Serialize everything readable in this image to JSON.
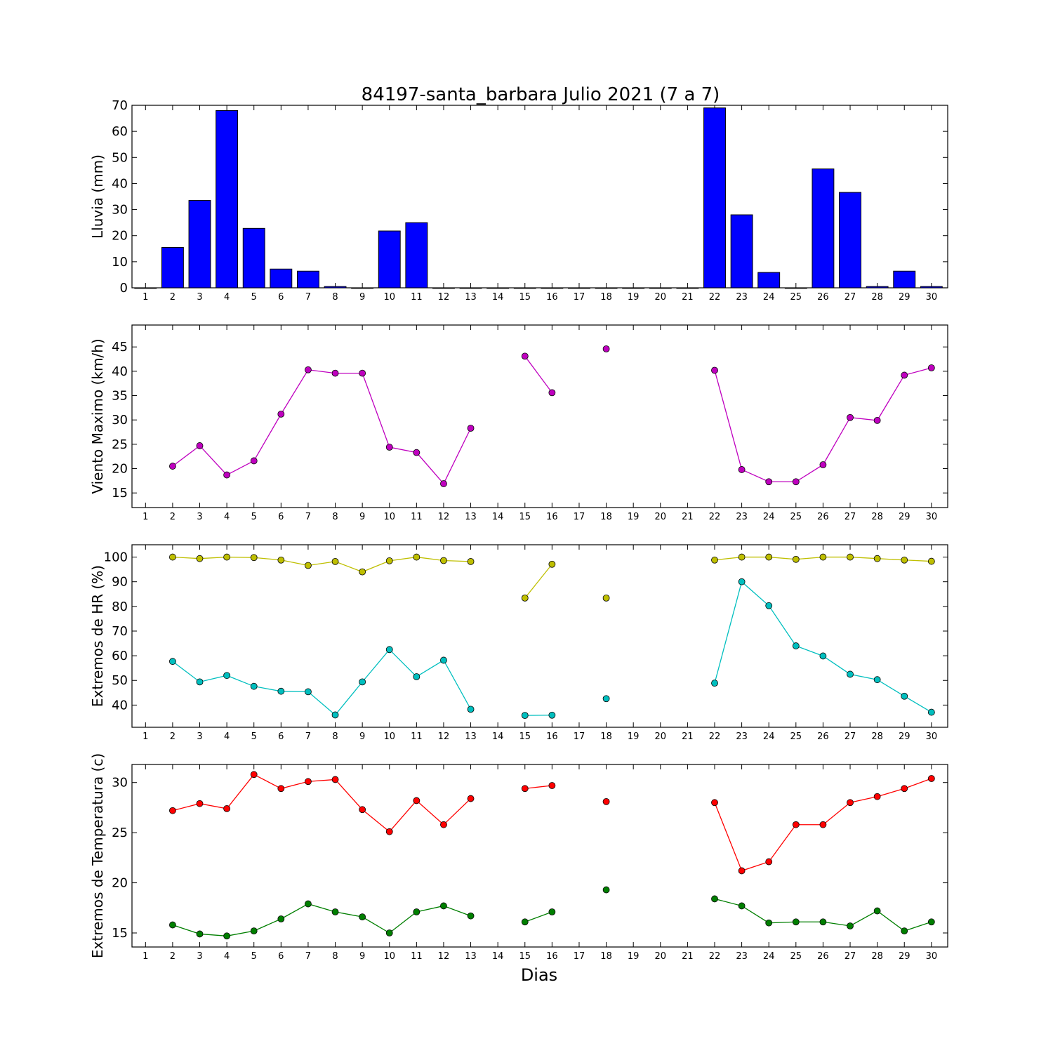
{
  "title": "84197-santa_barbara Julio 2021  (7 a 7)",
  "xlabel": "Dias",
  "days": [
    1,
    2,
    3,
    4,
    5,
    6,
    7,
    8,
    9,
    10,
    11,
    12,
    13,
    14,
    15,
    16,
    17,
    18,
    19,
    20,
    21,
    22,
    23,
    24,
    25,
    26,
    27,
    28,
    29,
    30
  ],
  "chart_data": [
    {
      "type": "bar",
      "ylabel": "Lluvia (mm)",
      "ylim": [
        0,
        70
      ],
      "yticks": [
        0,
        10,
        20,
        30,
        40,
        50,
        60,
        70
      ],
      "color": "#0000ff",
      "categories": [
        1,
        2,
        3,
        4,
        5,
        6,
        7,
        8,
        9,
        10,
        11,
        12,
        13,
        14,
        15,
        16,
        17,
        18,
        19,
        20,
        21,
        22,
        23,
        24,
        25,
        26,
        27,
        28,
        29,
        30
      ],
      "values": [
        0,
        15.5,
        33.5,
        68,
        22.8,
        7.2,
        6.4,
        0.5,
        0,
        21.8,
        25,
        0,
        0,
        0,
        0,
        0,
        0,
        0,
        0,
        0,
        0,
        69,
        28,
        5.9,
        0,
        45.6,
        36.6,
        0.5,
        6.4,
        0.5
      ]
    },
    {
      "type": "line",
      "ylabel": "Viento Maximo (km/h)",
      "ylim": [
        12,
        49.5
      ],
      "yticks": [
        15,
        20,
        25,
        30,
        35,
        40,
        45
      ],
      "x": [
        1,
        2,
        3,
        4,
        5,
        6,
        7,
        8,
        9,
        10,
        11,
        12,
        13,
        14,
        15,
        16,
        17,
        18,
        19,
        20,
        21,
        22,
        23,
        24,
        25,
        26,
        27,
        28,
        29,
        30
      ],
      "series": [
        {
          "color": "#bf00bf",
          "values": [
            null,
            20.5,
            24.7,
            18.7,
            21.6,
            31.2,
            40.3,
            39.6,
            39.6,
            24.4,
            23.3,
            16.9,
            28.3,
            null,
            43.1,
            35.6,
            null,
            44.6,
            null,
            null,
            null,
            40.2,
            19.8,
            17.3,
            17.3,
            20.8,
            30.5,
            29.9,
            39.2,
            40.7
          ]
        }
      ]
    },
    {
      "type": "line",
      "ylabel": "Extremos de HR (%)",
      "ylim": [
        31,
        105
      ],
      "yticks": [
        40,
        50,
        60,
        70,
        80,
        90,
        100
      ],
      "x": [
        1,
        2,
        3,
        4,
        5,
        6,
        7,
        8,
        9,
        10,
        11,
        12,
        13,
        14,
        15,
        16,
        17,
        18,
        19,
        20,
        21,
        22,
        23,
        24,
        25,
        26,
        27,
        28,
        29,
        30
      ],
      "series": [
        {
          "color": "#bfbf00",
          "values": [
            null,
            100,
            99.4,
            100,
            99.8,
            98.8,
            96.6,
            98.2,
            94,
            98.5,
            100,
            98.6,
            98.2,
            null,
            83.4,
            97.1,
            null,
            83.4,
            null,
            null,
            null,
            98.8,
            100,
            100,
            99.1,
            100,
            100,
            99.4,
            98.8,
            98.3
          ]
        },
        {
          "color": "#00bfbf",
          "values": [
            null,
            57.7,
            49.4,
            52,
            47.6,
            45.6,
            45.4,
            36,
            49.4,
            62.5,
            51.5,
            58.2,
            38.3,
            null,
            35.8,
            35.9,
            null,
            42.6,
            null,
            null,
            null,
            48.9,
            90,
            80.3,
            64,
            59.9,
            52.5,
            50.3,
            43.6,
            37.1
          ]
        }
      ]
    },
    {
      "type": "line",
      "ylabel": "Extremos de Temperatura (c)",
      "ylim": [
        13.6,
        31.8
      ],
      "yticks": [
        15,
        20,
        25,
        30
      ],
      "x": [
        1,
        2,
        3,
        4,
        5,
        6,
        7,
        8,
        9,
        10,
        11,
        12,
        13,
        14,
        15,
        16,
        17,
        18,
        19,
        20,
        21,
        22,
        23,
        24,
        25,
        26,
        27,
        28,
        29,
        30
      ],
      "series": [
        {
          "color": "#ff0000",
          "values": [
            null,
            27.2,
            27.9,
            27.4,
            30.8,
            29.4,
            30.1,
            30.3,
            27.3,
            25.1,
            28.2,
            25.8,
            28.4,
            null,
            29.4,
            29.7,
            null,
            28.1,
            null,
            null,
            null,
            28,
            21.2,
            22.1,
            25.8,
            25.8,
            28,
            28.6,
            29.4,
            30.4
          ]
        },
        {
          "color": "#007f00",
          "values": [
            null,
            15.8,
            14.9,
            14.7,
            15.2,
            16.4,
            17.9,
            17.1,
            16.6,
            15,
            17.1,
            17.7,
            16.7,
            null,
            16.1,
            17.1,
            null,
            19.3,
            null,
            null,
            null,
            18.4,
            17.7,
            16,
            16.1,
            16.1,
            15.7,
            17.2,
            15.2,
            16.1
          ]
        }
      ]
    }
  ]
}
